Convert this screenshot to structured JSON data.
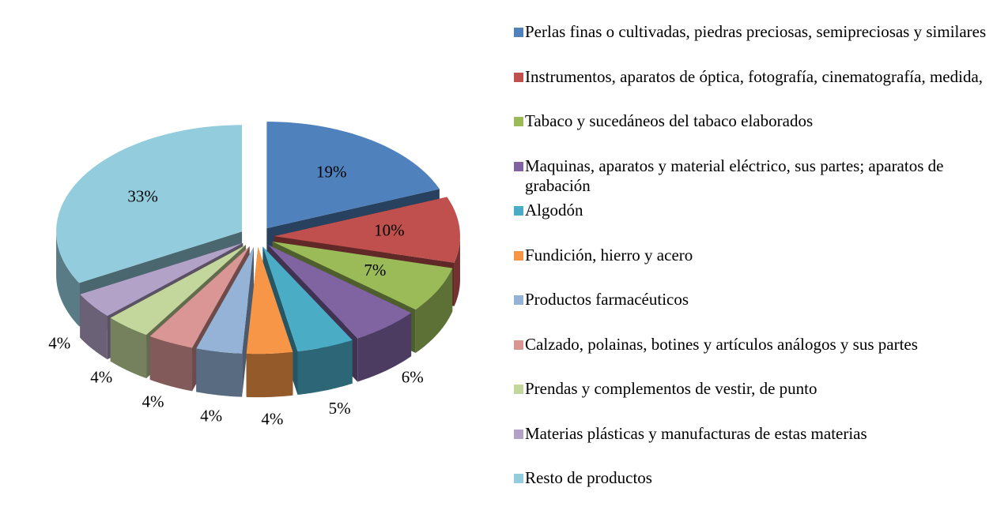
{
  "chart_data": {
    "type": "pie3d",
    "categories": [
      "Perlas finas o cultivadas, piedras preciosas, semipreciosas y similares",
      "Instrumentos, aparatos de óptica, fotografía, cinematografía, medida,",
      "Tabaco y sucedáneos del tabaco elaborados",
      "Maquinas, aparatos y material eléctrico, sus partes; aparatos de grabación",
      "Algodón",
      "Fundición, hierro y acero",
      "Productos farmacéuticos",
      "Calzado, polainas, botines y artículos análogos y sus partes",
      "Prendas y complementos de vestir, de punto",
      "Materias plásticas y manufacturas de estas materias",
      "Resto de productos"
    ],
    "values": [
      19,
      10,
      7,
      6,
      5,
      4,
      4,
      4,
      4,
      4,
      33
    ],
    "value_labels": [
      "19%",
      "10%",
      "7%",
      "6%",
      "5%",
      "4%",
      "4%",
      "4%",
      "4%",
      "4%",
      "33%"
    ],
    "colors": [
      "#4f81bd",
      "#c0504d",
      "#9bbb59",
      "#8064a2",
      "#4bacc6",
      "#f79646",
      "#95b3d7",
      "#d99694",
      "#c3d69b",
      "#b3a2c7",
      "#93cddd"
    ],
    "legend": "right"
  }
}
